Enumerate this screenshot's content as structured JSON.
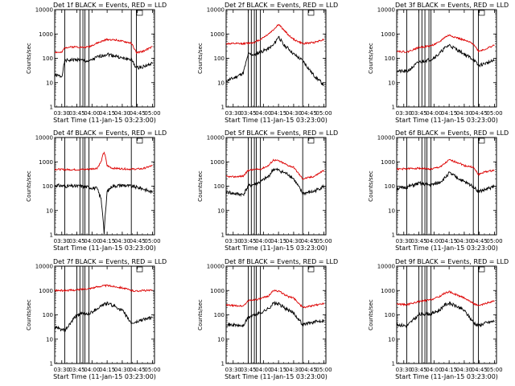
{
  "figure": {
    "xlabel": "Start Time (11-Jan-15 03:23:00)",
    "ylabel": "Counts/sec",
    "x_ticks": [
      "03:30",
      "03:45",
      "04:00",
      "04:15",
      "04:30",
      "04:45",
      "05:00"
    ],
    "y_ticks": [
      "1",
      "10",
      "100",
      "1000",
      "10000"
    ]
  },
  "colors": {
    "events": "#000000",
    "lld": "#dd0000"
  },
  "chart_data": [
    {
      "type": "line",
      "title": "Det 1f BLACK = Events, RED = LLD",
      "xlim": [
        "03:23",
        "05:02"
      ],
      "ylim": [
        1,
        10000
      ],
      "yscale": "log",
      "grid": false,
      "vlines": [
        "03:33",
        "03:48",
        "03:51",
        "03:53",
        "03:57",
        "04:39",
        "04:44"
      ],
      "x": [
        "03:23",
        "03:30",
        "03:33",
        "03:45",
        "03:51",
        "03:57",
        "04:05",
        "04:15",
        "04:25",
        "04:30",
        "04:39",
        "04:44",
        "04:50",
        "05:00"
      ],
      "series": [
        {
          "name": "BLACK = Events",
          "values": [
            20,
            18,
            80,
            90,
            80,
            75,
            110,
            150,
            120,
            100,
            90,
            40,
            45,
            60
          ]
        },
        {
          "name": "RED = LLD",
          "values": [
            180,
            170,
            280,
            300,
            280,
            300,
            420,
            600,
            560,
            500,
            420,
            170,
            190,
            300
          ]
        }
      ]
    },
    {
      "type": "line",
      "title": "Det 2f BLACK = Events, RED = LLD",
      "xlim": [
        "03:23",
        "05:02"
      ],
      "ylim": [
        1,
        10000
      ],
      "yscale": "log",
      "grid": false,
      "vlines": [
        "03:45",
        "03:48",
        "03:51",
        "03:53",
        "03:57",
        "04:39"
      ],
      "x": [
        "03:23",
        "03:30",
        "03:40",
        "03:45",
        "03:51",
        "03:57",
        "04:05",
        "04:10",
        "04:15",
        "04:20",
        "04:25",
        "04:30",
        "04:39",
        "04:50",
        "05:00"
      ],
      "series": [
        {
          "name": "BLACK = Events",
          "values": [
            12,
            15,
            25,
            150,
            140,
            180,
            250,
            350,
            800,
            350,
            250,
            150,
            80,
            20,
            8
          ]
        },
        {
          "name": "RED = LLD",
          "values": [
            400,
            400,
            400,
            420,
            450,
            600,
            1000,
            1500,
            2500,
            1500,
            900,
            600,
            400,
            450,
            600
          ]
        }
      ]
    },
    {
      "type": "line",
      "title": "Det 3f BLACK = Events, RED = LLD",
      "xlim": [
        "03:23",
        "05:02"
      ],
      "ylim": [
        1,
        10000
      ],
      "yscale": "log",
      "grid": false,
      "vlines": [
        "03:33",
        "03:45",
        "03:48",
        "03:51",
        "03:55",
        "03:57",
        "04:39",
        "04:44"
      ],
      "x": [
        "03:23",
        "03:33",
        "03:45",
        "03:51",
        "03:57",
        "04:05",
        "04:10",
        "04:15",
        "04:25",
        "04:30",
        "04:39",
        "04:44",
        "04:50",
        "05:00"
      ],
      "series": [
        {
          "name": "BLACK = Events",
          "values": [
            30,
            28,
            70,
            80,
            90,
            150,
            250,
            350,
            200,
            150,
            90,
            50,
            60,
            80
          ]
        },
        {
          "name": "RED = LLD",
          "values": [
            200,
            180,
            280,
            300,
            330,
            450,
            700,
            900,
            650,
            550,
            400,
            200,
            230,
            350
          ]
        }
      ]
    },
    {
      "type": "line",
      "title": "Det 4f BLACK = Events, RED = LLD",
      "xlim": [
        "03:23",
        "05:02"
      ],
      "ylim": [
        1,
        10000
      ],
      "yscale": "log",
      "grid": false,
      "vlines": [
        "03:33",
        "03:48",
        "03:51",
        "03:53",
        "03:57",
        "04:39"
      ],
      "x": [
        "03:23",
        "03:33",
        "03:48",
        "03:57",
        "04:05",
        "04:09",
        "04:11",
        "04:12",
        "04:13",
        "04:15",
        "04:20",
        "04:30",
        "04:39",
        "04:50",
        "05:00"
      ],
      "series": [
        {
          "name": "BLACK = Events",
          "values": [
            110,
            100,
            100,
            90,
            80,
            30,
            5,
            1.2,
            5,
            60,
            100,
            110,
            100,
            80,
            55
          ]
        },
        {
          "name": "RED = LLD",
          "values": [
            500,
            480,
            480,
            500,
            550,
            1000,
            2000,
            2500,
            1800,
            700,
            550,
            520,
            500,
            520,
            700
          ]
        }
      ]
    },
    {
      "type": "line",
      "title": "Det 5f BLACK = Events, RED = LLD",
      "xlim": [
        "03:23",
        "05:02"
      ],
      "ylim": [
        1,
        10000
      ],
      "yscale": "log",
      "grid": false,
      "vlines": [
        "03:45",
        "03:48",
        "03:51",
        "03:53",
        "03:57",
        "04:39"
      ],
      "x": [
        "03:23",
        "03:30",
        "03:40",
        "03:45",
        "03:51",
        "03:57",
        "04:05",
        "04:10",
        "04:15",
        "04:25",
        "04:30",
        "04:39",
        "04:50",
        "05:00"
      ],
      "series": [
        {
          "name": "BLACK = Events",
          "values": [
            60,
            50,
            45,
            100,
            120,
            150,
            250,
            500,
            450,
            300,
            200,
            50,
            60,
            100
          ]
        },
        {
          "name": "RED = LLD",
          "values": [
            250,
            240,
            260,
            450,
            480,
            500,
            700,
            1200,
            1100,
            700,
            600,
            200,
            250,
            450
          ]
        }
      ]
    },
    {
      "type": "line",
      "title": "Det 6f BLACK = Events, RED = LLD",
      "xlim": [
        "03:23",
        "05:02"
      ],
      "ylim": [
        1,
        10000
      ],
      "yscale": "log",
      "grid": false,
      "vlines": [
        "03:33",
        "03:48",
        "03:51",
        "03:53",
        "03:57",
        "04:39",
        "04:44"
      ],
      "x": [
        "03:23",
        "03:33",
        "03:45",
        "03:51",
        "03:57",
        "04:05",
        "04:10",
        "04:15",
        "04:25",
        "04:30",
        "04:39",
        "04:44",
        "04:50",
        "05:00"
      ],
      "series": [
        {
          "name": "BLACK = Events",
          "values": [
            80,
            90,
            130,
            120,
            110,
            140,
            200,
            350,
            200,
            150,
            100,
            60,
            70,
            100
          ]
        },
        {
          "name": "RED = LLD",
          "values": [
            500,
            520,
            550,
            520,
            500,
            600,
            800,
            1200,
            900,
            700,
            600,
            300,
            380,
            450
          ]
        }
      ]
    },
    {
      "type": "line",
      "title": "Det 7f BLACK = Events, RED = LLD",
      "xlim": [
        "03:23",
        "05:02"
      ],
      "ylim": [
        1,
        10000
      ],
      "yscale": "log",
      "grid": false,
      "vlines": [
        "03:33",
        "03:45",
        "03:48",
        "03:51",
        "03:53",
        "03:57",
        "04:39"
      ],
      "x": [
        "03:23",
        "03:30",
        "03:33",
        "03:45",
        "03:51",
        "03:57",
        "04:05",
        "04:10",
        "04:15",
        "04:25",
        "04:30",
        "04:39",
        "04:44",
        "04:50",
        "05:00"
      ],
      "series": [
        {
          "name": "BLACK = Events",
          "values": [
            30,
            25,
            22,
            100,
            110,
            110,
            180,
            250,
            300,
            200,
            150,
            45,
            50,
            65,
            75
          ]
        },
        {
          "name": "RED = LLD",
          "values": [
            1000,
            1000,
            1000,
            1050,
            1150,
            1200,
            1400,
            1550,
            1600,
            1400,
            1300,
            1000,
            950,
            1000,
            1000
          ]
        }
      ]
    },
    {
      "type": "line",
      "title": "Det 8f BLACK = Events, RED = LLD",
      "xlim": [
        "03:23",
        "05:02"
      ],
      "ylim": [
        1,
        10000
      ],
      "yscale": "log",
      "grid": false,
      "vlines": [
        "03:45",
        "03:48",
        "03:51",
        "03:53",
        "03:57",
        "04:39"
      ],
      "x": [
        "03:23",
        "03:30",
        "03:40",
        "03:45",
        "03:51",
        "03:57",
        "04:05",
        "04:10",
        "04:15",
        "04:25",
        "04:30",
        "04:39",
        "04:50",
        "05:00"
      ],
      "series": [
        {
          "name": "BLACK = Events",
          "values": [
            40,
            38,
            35,
            80,
            100,
            120,
            180,
            300,
            280,
            150,
            120,
            40,
            50,
            60
          ]
        },
        {
          "name": "RED = LLD",
          "values": [
            250,
            240,
            230,
            380,
            420,
            450,
            600,
            1000,
            950,
            550,
            500,
            200,
            240,
            300
          ]
        }
      ]
    },
    {
      "type": "line",
      "title": "Det 9f BLACK = Events, RED = LLD",
      "xlim": [
        "03:23",
        "05:02"
      ],
      "ylim": [
        1,
        10000
      ],
      "yscale": "log",
      "grid": false,
      "vlines": [
        "03:33",
        "03:45",
        "03:48",
        "03:51",
        "03:53",
        "03:57",
        "04:39",
        "04:44"
      ],
      "x": [
        "03:23",
        "03:33",
        "03:45",
        "03:51",
        "03:57",
        "04:05",
        "04:10",
        "04:15",
        "04:25",
        "04:30",
        "04:39",
        "04:44",
        "04:50",
        "05:00"
      ],
      "series": [
        {
          "name": "BLACK = Events",
          "values": [
            40,
            35,
            100,
            110,
            110,
            150,
            250,
            300,
            200,
            150,
            50,
            35,
            45,
            55
          ]
        },
        {
          "name": "RED = LLD",
          "values": [
            280,
            260,
            350,
            380,
            420,
            550,
            750,
            900,
            600,
            500,
            300,
            230,
            280,
            380
          ]
        }
      ]
    }
  ]
}
